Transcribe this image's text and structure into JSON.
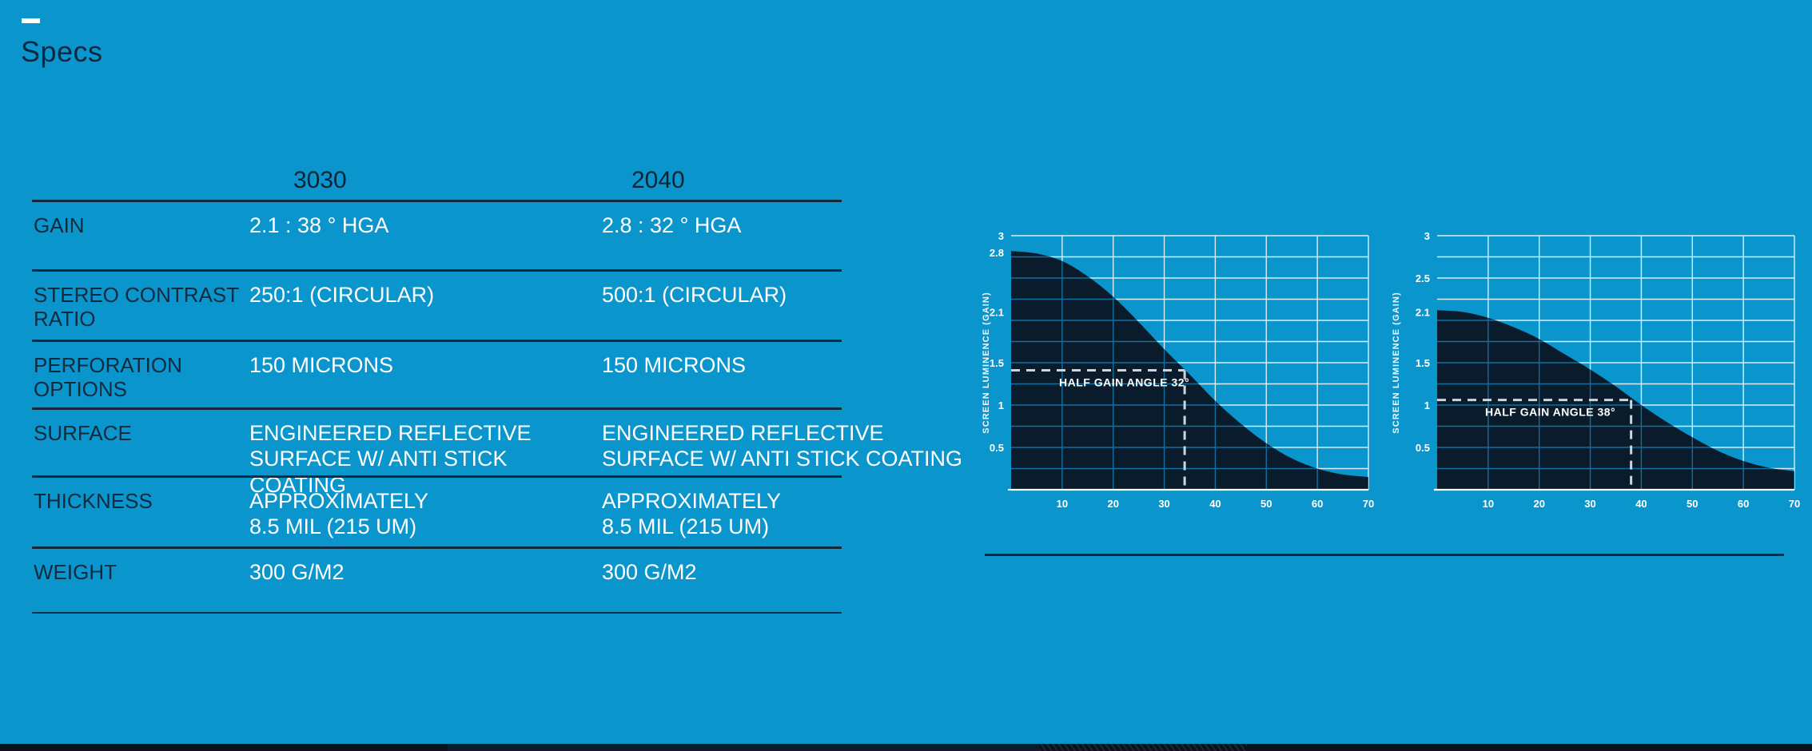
{
  "page": {
    "title": "Specs"
  },
  "colors": {
    "background": "#0a96cd",
    "ink_dark_navy": "#112a3e",
    "text_white": "#ffffff",
    "chart_area_fill": "#0a1b2b",
    "bottom_bar": "#081320"
  },
  "table": {
    "columns": [
      "3030",
      "2040"
    ],
    "rows": [
      {
        "label": "GAIN",
        "values": [
          "2.1 : 38 ° HGA",
          "2.8 : 32 ° HGA"
        ]
      },
      {
        "label": "STEREO CONTRAST\nRATIO",
        "values": [
          "250:1 (CIRCULAR)",
          "500:1 (CIRCULAR)"
        ]
      },
      {
        "label": "PERFORATION\nOPTIONS",
        "values": [
          "150 MICRONS",
          "150 MICRONS"
        ]
      },
      {
        "label": "SURFACE",
        "values": [
          "ENGINEERED REFLECTIVE\nSURFACE W/ ANTI STICK COATING",
          "ENGINEERED REFLECTIVE\nSURFACE W/ ANTI STICK COATING"
        ]
      },
      {
        "label": "THICKNESS",
        "values": [
          "APPROXIMATELY\n8.5 MIL (215 UM)",
          "APPROXIMATELY\n8.5 MIL (215 UM)"
        ]
      },
      {
        "label": "WEIGHT",
        "values": [
          "300 G/M2",
          "300 G/M2"
        ]
      }
    ]
  },
  "chart_data": [
    {
      "type": "area",
      "name": "gain-falloff-2040",
      "ylabel": "SCREEN LUMINENCE (GAIN)",
      "xlabel": "",
      "x": [
        0,
        5,
        10,
        15,
        20,
        25,
        30,
        35,
        40,
        45,
        50,
        55,
        60,
        65,
        70
      ],
      "y": [
        2.82,
        2.79,
        2.7,
        2.52,
        2.28,
        1.98,
        1.66,
        1.36,
        1.05,
        0.78,
        0.55,
        0.37,
        0.25,
        0.18,
        0.15
      ],
      "xlim": [
        0,
        70
      ],
      "ylim": [
        0,
        3
      ],
      "x_ticks": [
        10,
        20,
        30,
        40,
        50,
        60,
        70
      ],
      "y_tick_labels": [
        "3",
        "2.8",
        "2.1",
        "1.5",
        "1",
        "0.5"
      ],
      "grid": "on",
      "grid_step_x": 10,
      "grid_step_y": 0.25,
      "annotation": {
        "label": "HALF GAIN ANGLE 32°",
        "x": 34,
        "y": 1.41
      },
      "area_fill": "#0a1b2b",
      "grid_color_outside": "#e9f6fb",
      "grid_color_inside": "#116fa0",
      "axis_color": "#ffffff",
      "dash_color": "#ccd5db"
    },
    {
      "type": "area",
      "name": "gain-falloff-3030",
      "ylabel": "SCREEN LUMINENCE (GAIN)",
      "xlabel": "",
      "x": [
        0,
        5,
        10,
        15,
        20,
        25,
        30,
        35,
        40,
        45,
        50,
        55,
        60,
        65,
        70
      ],
      "y": [
        2.12,
        2.1,
        2.03,
        1.92,
        1.78,
        1.6,
        1.42,
        1.22,
        1.0,
        0.8,
        0.62,
        0.46,
        0.34,
        0.26,
        0.22
      ],
      "xlim": [
        0,
        70
      ],
      "ylim": [
        0,
        3
      ],
      "x_ticks": [
        10,
        20,
        30,
        40,
        50,
        60,
        70
      ],
      "y_tick_labels": [
        "3",
        "2.5",
        "2.1",
        "1.5",
        "1",
        "0.5"
      ],
      "grid": "on",
      "grid_step_x": 10,
      "grid_step_y": 0.25,
      "annotation": {
        "label": "HALF GAIN ANGLE 38°",
        "x": 38,
        "y": 1.06
      },
      "area_fill": "#0a1b2b",
      "grid_color_outside": "#e9f6fb",
      "grid_color_inside": "#116fa0",
      "axis_color": "#ffffff",
      "dash_color": "#ccd5db"
    }
  ]
}
